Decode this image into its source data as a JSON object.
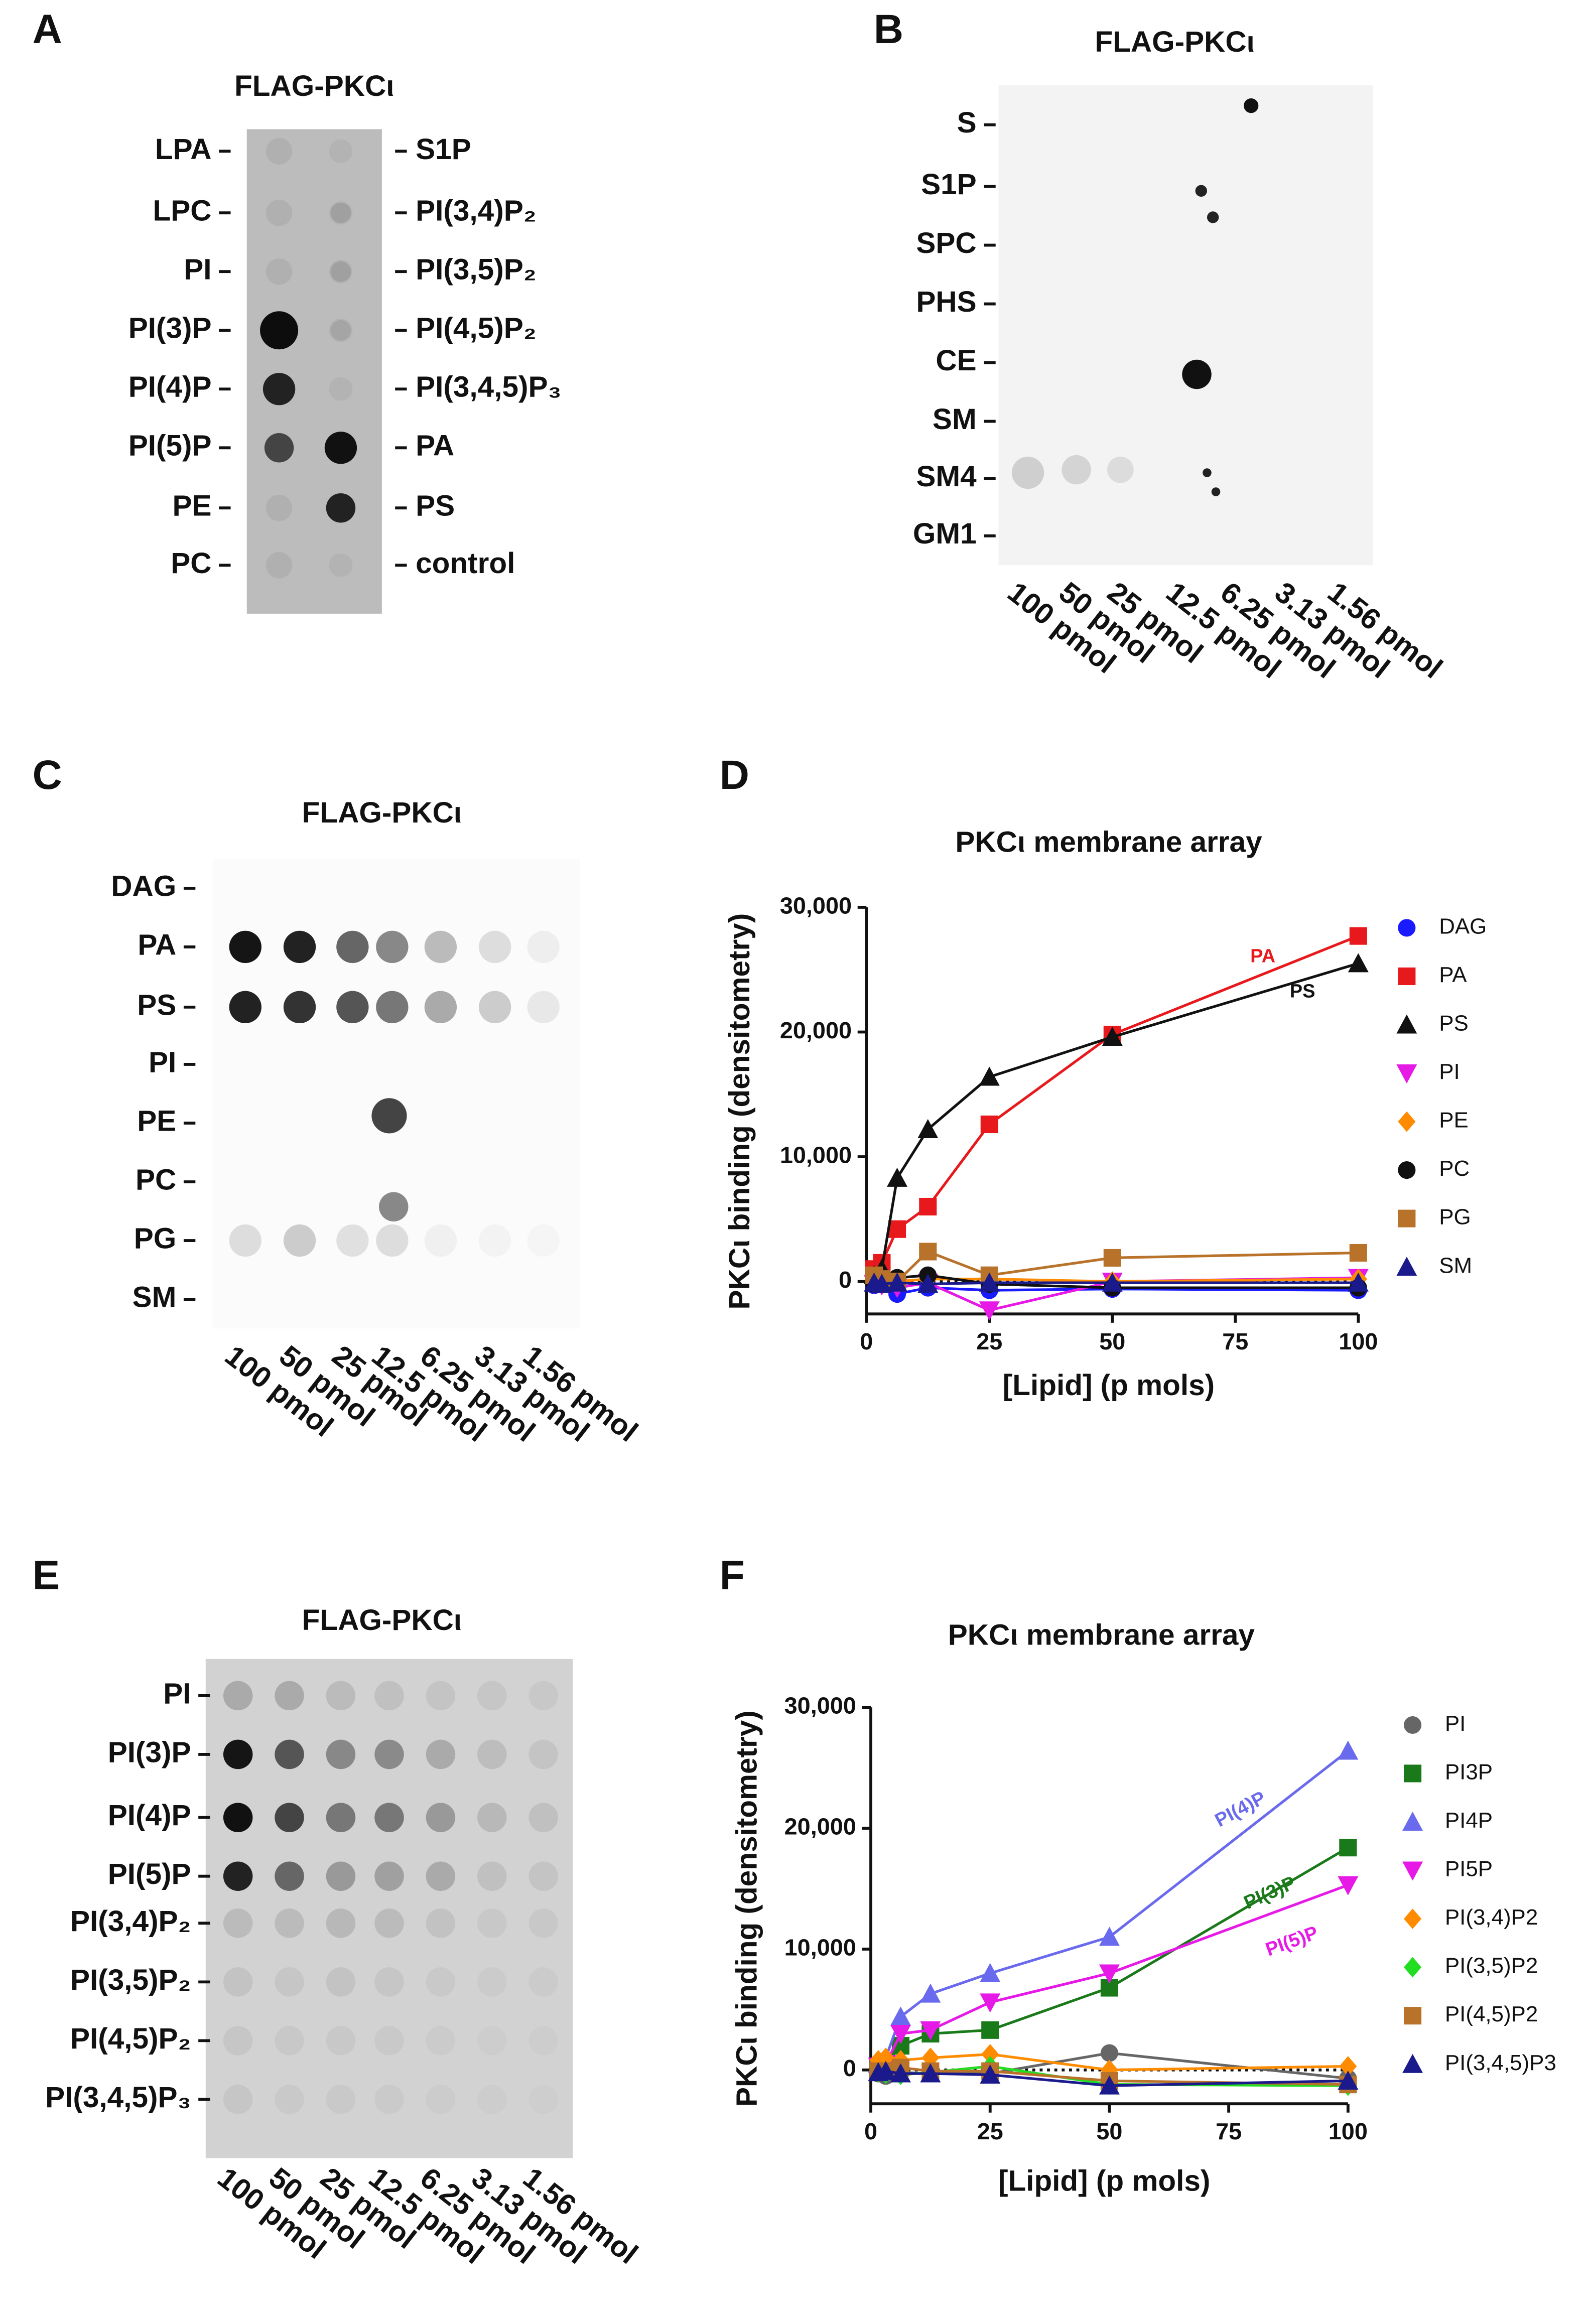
{
  "panels": {
    "A": {
      "letter": "A",
      "title": "FLAG-PKCι",
      "left_labels": [
        "LPA",
        "LPC",
        "PI",
        "PI(3)P",
        "PI(4)P",
        "PI(5)P",
        "PE",
        "PC"
      ],
      "right_labels": [
        "S1P",
        "PI(3,4)P₂",
        "PI(3,5)P₂",
        "PI(4,5)P₂",
        "PI(3,4,5)P₃",
        "PA",
        "PS",
        "control"
      ]
    },
    "B": {
      "letter": "B",
      "title": "FLAG-PKCι",
      "row_labels": [
        "S",
        "S1P",
        "SPC",
        "PHS",
        "CE",
        "SM",
        "SM4",
        "GM1"
      ],
      "column_labels": [
        "100 pmol",
        "50 pmol",
        "25 pmol",
        "12.5 pmol",
        "6.25 pmol",
        "3.13 pmol",
        "1.56 pmol"
      ]
    },
    "C": {
      "letter": "C",
      "title": "FLAG-PKCι",
      "row_labels": [
        "DAG",
        "PA",
        "PS",
        "PI",
        "PE",
        "PC",
        "PG",
        "SM"
      ],
      "column_labels": [
        "100 pmol",
        "50 pmol",
        "25 pmol",
        "12.5 pmol",
        "6.25 pmol",
        "3.13 pmol",
        "1.56 pmol"
      ]
    },
    "E": {
      "letter": "E",
      "title": "FLAG-PKCι",
      "row_labels": [
        "PI",
        "PI(3)P",
        "PI(4)P",
        "PI(5)P",
        "PI(3,4)P₂",
        "PI(3,5)P₂",
        "PI(4,5)P₂",
        "PI(3,4,5)P₃"
      ],
      "column_labels": [
        "100 pmol",
        "50 pmol",
        "25 pmol",
        "12.5 pmol",
        "6.25 pmol",
        "3.13 pmol",
        "1.56 pmol"
      ]
    }
  },
  "chart_data": [
    {
      "panel": "D",
      "type": "line",
      "title": "PKCι membrane array",
      "y_label": "PKCι binding (densitometry)",
      "x_label": "[Lipid] (p mols)",
      "x": [
        1.56,
        3.13,
        6.25,
        12.5,
        25,
        50,
        100
      ],
      "xlim": [
        0,
        100
      ],
      "xticks": [
        0,
        25,
        50,
        75,
        100
      ],
      "ylim": [
        -2600,
        30000
      ],
      "yticks": [
        0,
        {
          "value": 10000,
          "label": "10,000"
        },
        {
          "value": 20000,
          "label": "20,000"
        },
        {
          "value": 30000,
          "label": "30,000"
        }
      ],
      "series": [
        {
          "name": "DAG",
          "color": "#1a1aff",
          "marker": "circle",
          "values": [
            -300,
            -200,
            -1000,
            -500,
            -700,
            -600,
            -700
          ]
        },
        {
          "name": "PA",
          "color": "#e8191c",
          "marker": "square",
          "values": [
            1000,
            1500,
            4200,
            6000,
            12600,
            19800,
            27700
          ]
        },
        {
          "name": "PS",
          "color": "#111111",
          "marker": "triangle",
          "values": [
            500,
            1000,
            8300,
            12200,
            16400,
            19600,
            25500
          ]
        },
        {
          "name": "PI",
          "color": "#e619e6",
          "marker": "triangle-down",
          "values": [
            -200,
            -300,
            -500,
            -100,
            -2300,
            0,
            300
          ]
        },
        {
          "name": "PE",
          "color": "#ff8c00",
          "marker": "diamond",
          "values": [
            0,
            -100,
            0,
            200,
            200,
            0,
            200
          ]
        },
        {
          "name": "PC",
          "color": "#111111",
          "marker": "circle",
          "values": [
            -200,
            -100,
            300,
            500,
            -200,
            -500,
            -500
          ]
        },
        {
          "name": "PG",
          "color": "#b8722a",
          "marker": "square",
          "values": [
            500,
            200,
            0,
            2400,
            500,
            1900,
            2300
          ]
        },
        {
          "name": "SM",
          "color": "#1a1a8c",
          "marker": "triangle",
          "values": [
            -100,
            -200,
            -100,
            -200,
            -100,
            -100,
            -100
          ]
        }
      ],
      "annotations": [
        {
          "text": "PA",
          "color": "#e8191c"
        },
        {
          "text": "PS",
          "color": "#111111"
        }
      ]
    },
    {
      "panel": "F",
      "type": "line",
      "title": "PKCι membrane array",
      "y_label": "PKCι binding (densitometry)",
      "x_label": "[Lipid] (p mols)",
      "x": [
        1.56,
        3.13,
        6.25,
        12.5,
        25,
        50,
        100
      ],
      "xlim": [
        0,
        100
      ],
      "xticks": [
        0,
        25,
        50,
        75,
        100
      ],
      "ylim": [
        -2800,
        30000
      ],
      "yticks": [
        0,
        {
          "value": 10000,
          "label": "10,000"
        },
        {
          "value": 20000,
          "label": "20,000"
        },
        {
          "value": 30000,
          "label": "30,000"
        }
      ],
      "series": [
        {
          "name": "PI",
          "color": "#666666",
          "marker": "circle",
          "values": [
            -300,
            -500,
            -200,
            -300,
            -300,
            1400,
            -700
          ]
        },
        {
          "name": "PI3P",
          "color": "#1a7a1a",
          "marker": "square",
          "values": [
            200,
            500,
            2000,
            3000,
            3300,
            6800,
            18400
          ]
        },
        {
          "name": "PI4P",
          "color": "#6a6aee",
          "marker": "triangle",
          "values": [
            500,
            1000,
            4400,
            6300,
            8000,
            11000,
            26400
          ]
        },
        {
          "name": "PI5P",
          "color": "#e619e6",
          "marker": "triangle-down",
          "values": [
            300,
            500,
            3000,
            3300,
            5600,
            8000,
            15300
          ]
        },
        {
          "name": "PI(3,4)P2",
          "color": "#ff8c00",
          "marker": "diamond",
          "values": [
            800,
            1000,
            800,
            1000,
            1300,
            0,
            300
          ]
        },
        {
          "name": "PI(3,5)P2",
          "color": "#22dd22",
          "marker": "diamond",
          "values": [
            -200,
            -300,
            -400,
            -200,
            300,
            -1200,
            -1300
          ]
        },
        {
          "name": "PI(4,5)P2",
          "color": "#b8722a",
          "marker": "square",
          "values": [
            -100,
            -100,
            200,
            -100,
            -100,
            -900,
            -1200
          ]
        },
        {
          "name": "PI(3,4,5)P3",
          "color": "#1a1a8c",
          "marker": "triangle",
          "values": [
            -200,
            -100,
            -300,
            -300,
            -400,
            -1300,
            -900
          ]
        }
      ],
      "annotations": [
        {
          "text": "PI(4)P",
          "color": "#6a6aee"
        },
        {
          "text": "PI(3)P",
          "color": "#1a7a1a"
        },
        {
          "text": "PI(5)P",
          "color": "#e619e6"
        }
      ]
    }
  ]
}
